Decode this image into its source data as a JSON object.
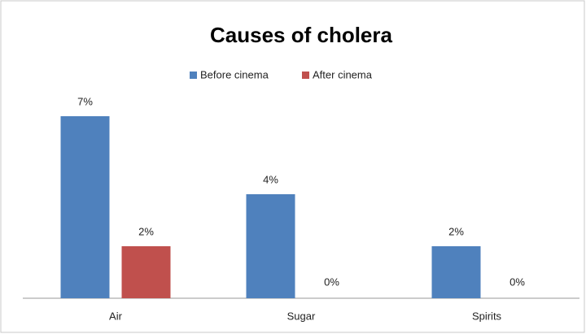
{
  "chart_data": {
    "type": "bar",
    "title": "Causes of cholera",
    "categories": [
      "Air",
      "Sugar",
      "Spirits"
    ],
    "series": [
      {
        "name": "Before cinema",
        "color": "#4f81bd",
        "values": [
          7,
          4,
          2
        ],
        "value_labels": [
          "7%",
          "4%",
          "2%"
        ]
      },
      {
        "name": "After cinema",
        "color": "#c0504d",
        "values": [
          2,
          0,
          0
        ],
        "value_labels": [
          "2%",
          "0%",
          "0%"
        ]
      }
    ],
    "legend": "top"
  }
}
